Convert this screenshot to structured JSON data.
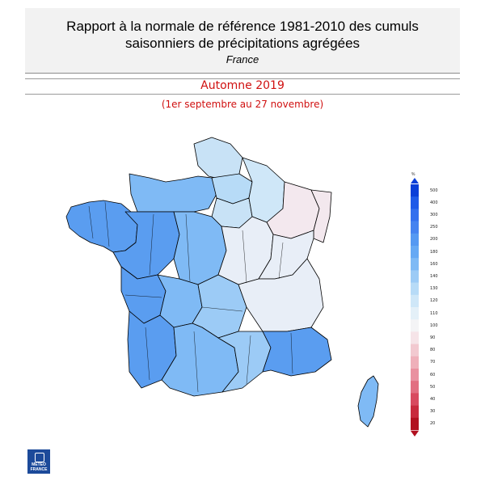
{
  "header": {
    "title": "Rapport à la normale de référence 1981-2010 des cumuls saisonniers de précipitations agrégées",
    "region": "France"
  },
  "period": {
    "season": "Automne 2019",
    "dates": "(1er septembre au 27 novembre)"
  },
  "legend": {
    "unit": "%",
    "ticks": [
      "500",
      "400",
      "300",
      "250",
      "200",
      "180",
      "160",
      "140",
      "130",
      "120",
      "110",
      "100",
      "90",
      "80",
      "70",
      "60",
      "50",
      "40",
      "30",
      "20"
    ],
    "colors": [
      "#0a3fd8",
      "#1f5be8",
      "#3370ee",
      "#4583f0",
      "#5599f2",
      "#66a9f4",
      "#7fbaf5",
      "#9ccbf6",
      "#b7dbf7",
      "#cfe7f8",
      "#e4f0f8",
      "#f4f4f6",
      "#f6e4e8",
      "#f2c9d0",
      "#efb0ba",
      "#e991a0",
      "#e26f81",
      "#d84a5f",
      "#c82a3d",
      "#b1101f"
    ]
  },
  "logo": {
    "line1": "METEO",
    "line2": "FRANCE"
  },
  "map": {
    "colors": {
      "dark_blue": "#5a9df0",
      "mid_blue": "#8ec4f2",
      "light_blue": "#c8e2f6",
      "pale": "#e8eef7",
      "pinkish": "#f3e8ee",
      "border": "#000000"
    }
  }
}
